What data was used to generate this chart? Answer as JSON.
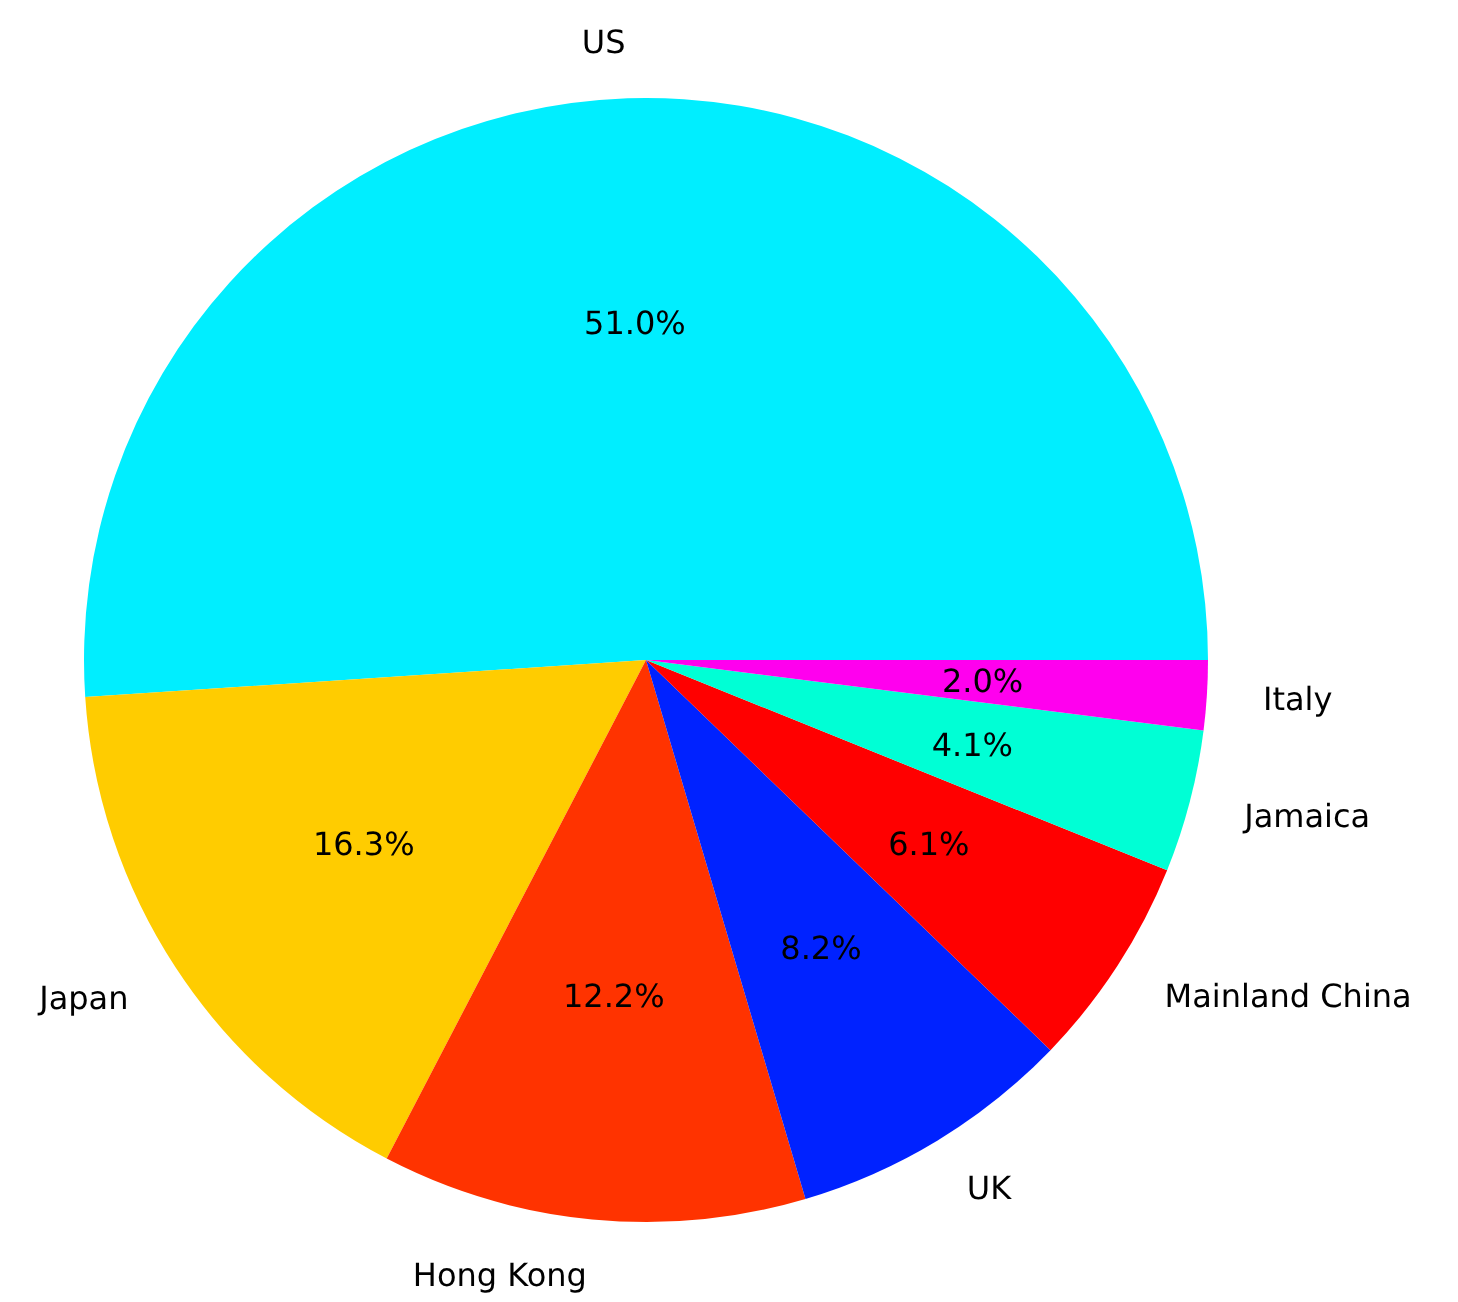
{
  "chart_data": {
    "type": "pie",
    "categories": [
      "US",
      "Japan",
      "Hong Kong",
      "UK",
      "Mainland China",
      "Jamaica",
      "Italy"
    ],
    "values": [
      51.0,
      16.3,
      12.2,
      8.2,
      6.1,
      4.1,
      2.0
    ],
    "value_labels": [
      "51.0%",
      "16.3%",
      "12.2%",
      "8.2%",
      "6.1%",
      "4.1%",
      "2.0%"
    ],
    "colors": [
      "#00eeff",
      "#ffcc00",
      "#ff3300",
      "#0022ff",
      "#ff0000",
      "#00ffd5",
      "#ff00ee"
    ]
  }
}
